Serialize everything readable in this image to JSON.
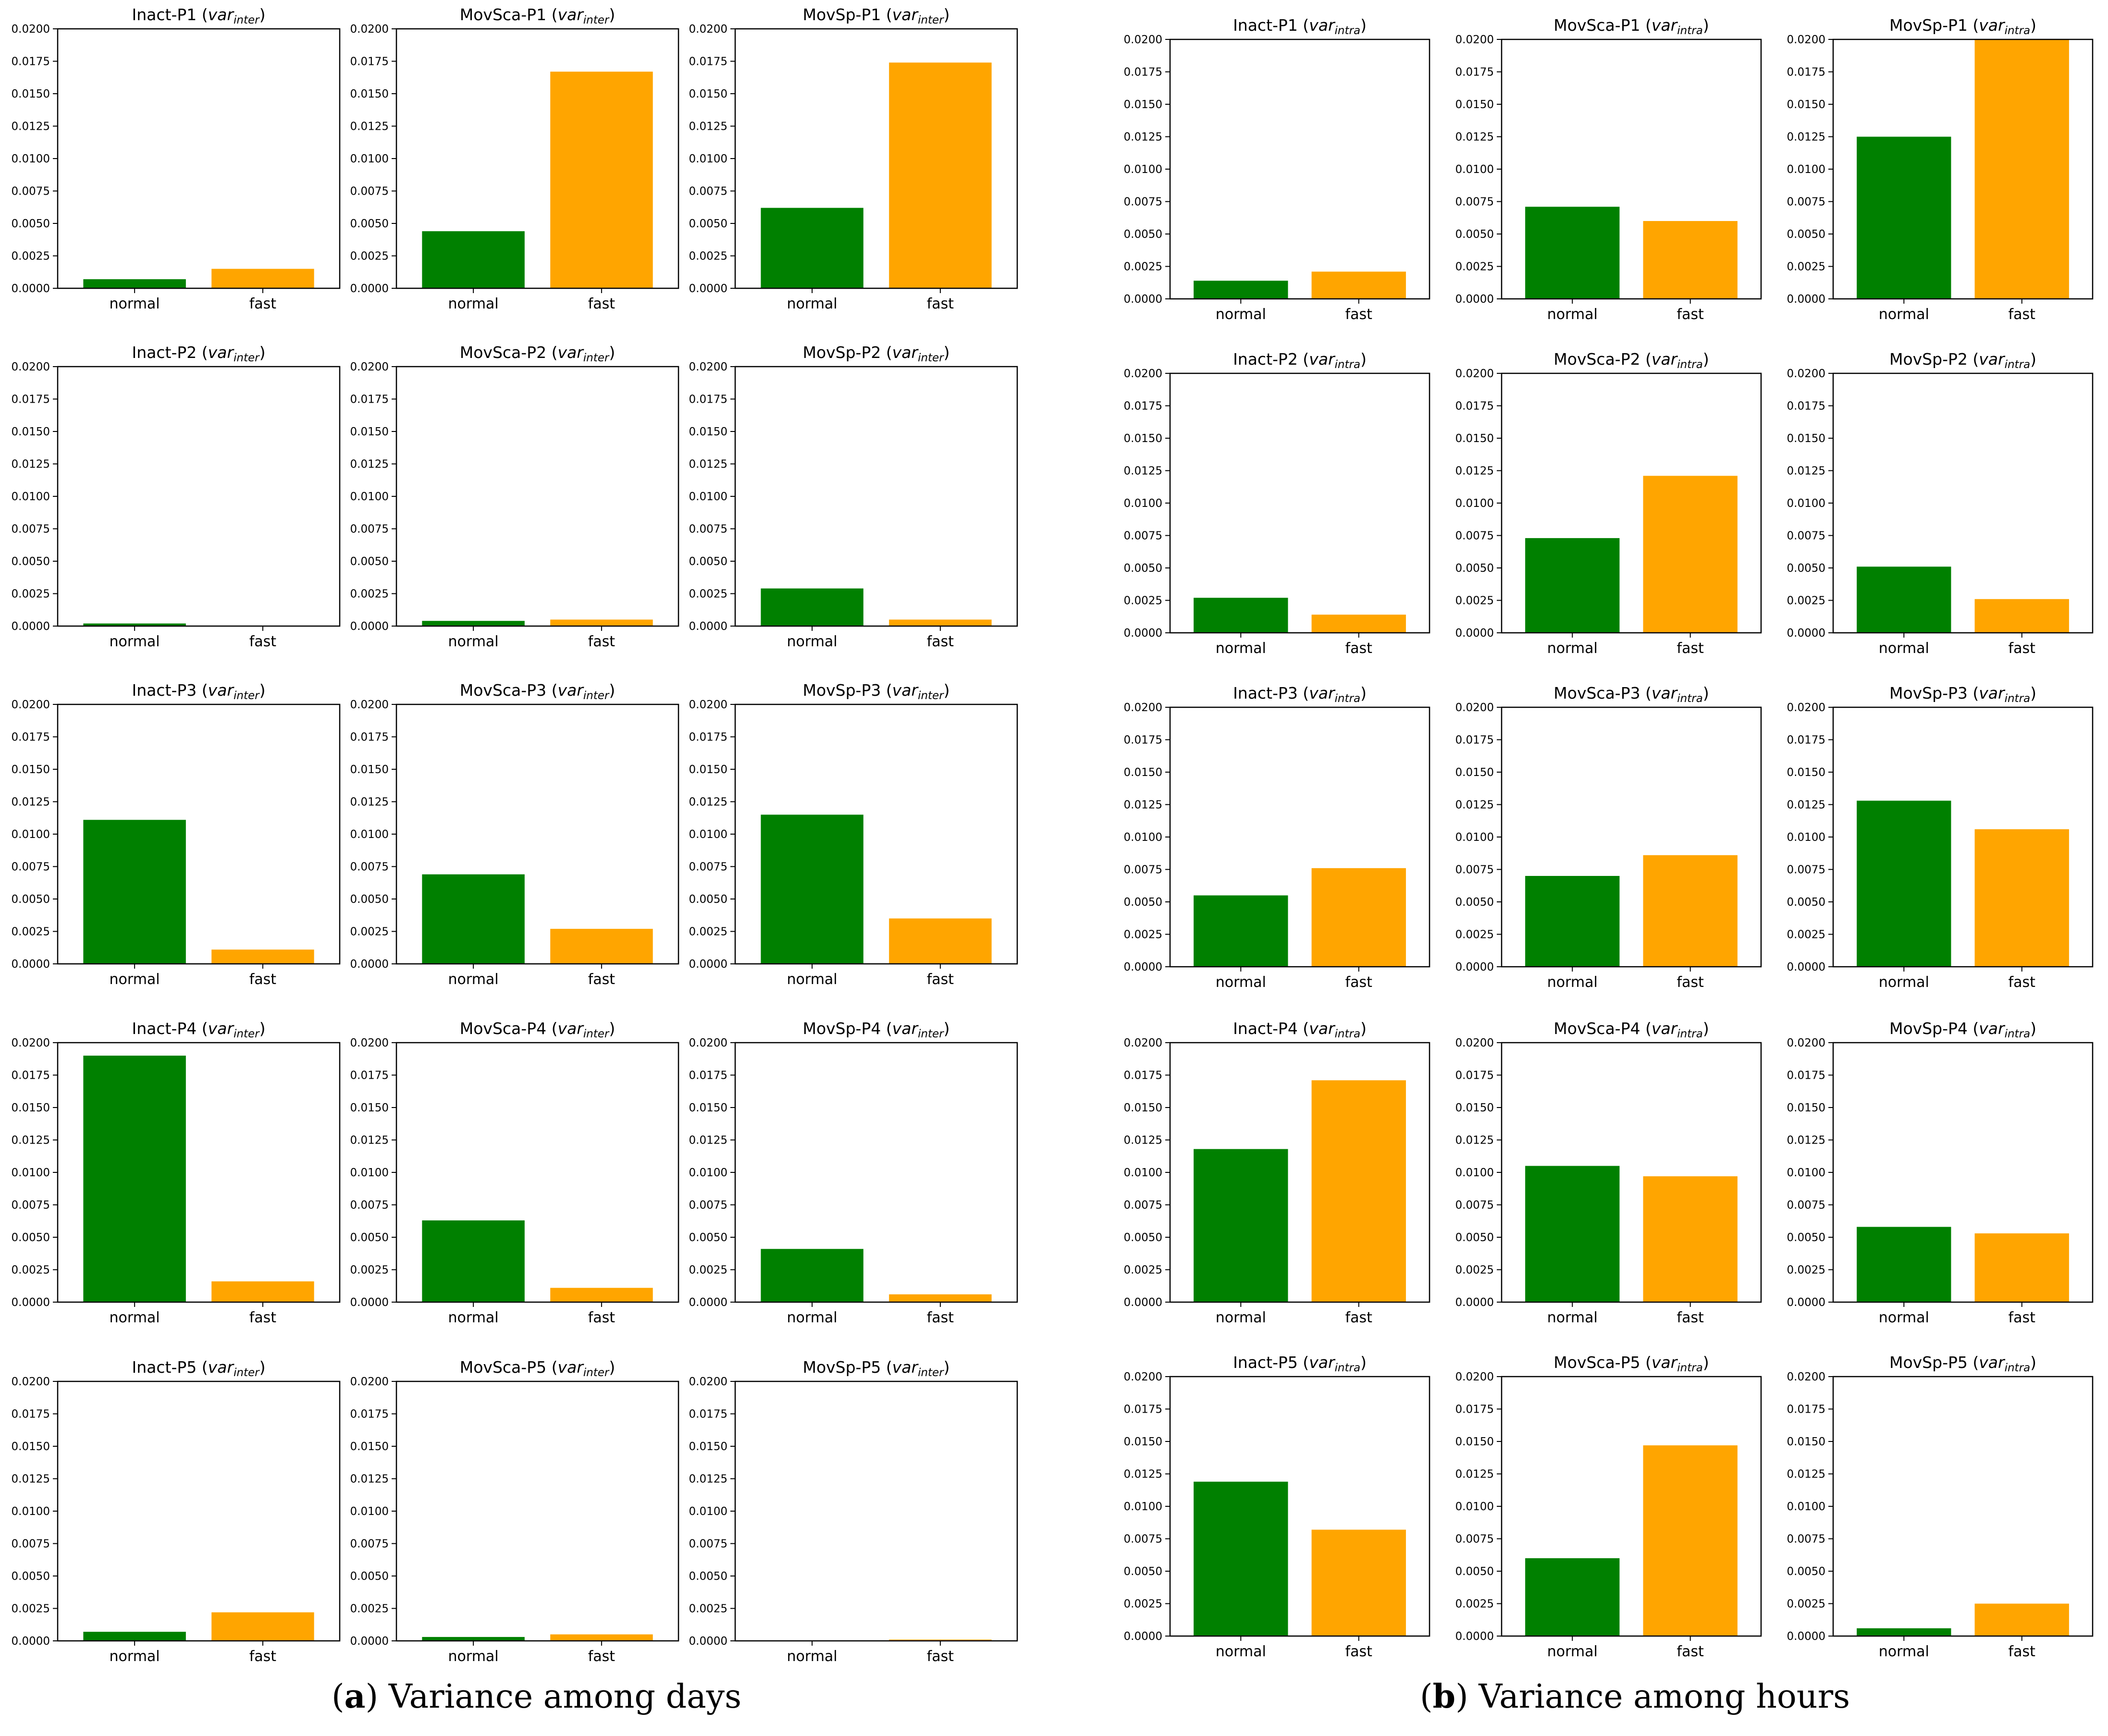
{
  "colors": {
    "normal": "#008000",
    "fast": "#ffa500",
    "axis": "#000000",
    "background": "#ffffff"
  },
  "captions": {
    "a": {
      "paren_open": "(",
      "label": "a",
      "paren_close": ")",
      "text": " Variance among days"
    },
    "b": {
      "paren_open": "(",
      "label": "b",
      "paren_close": ")",
      "text": " Variance among hours"
    }
  },
  "chart_data": {
    "type": "bar",
    "title_format": "{metric}-{participant} (var_{subscript})",
    "categories": [
      "normal",
      "fast"
    ],
    "ylim": [
      0,
      0.02
    ],
    "yticks": [
      "0.0000",
      "0.0025",
      "0.0050",
      "0.0075",
      "0.0100",
      "0.0125",
      "0.0150",
      "0.0175",
      "0.0200"
    ],
    "panels": [
      {
        "id": "a",
        "variance": "inter",
        "charts": [
          {
            "title": "Inact-P1",
            "sub": "inter",
            "values": [
              0.0007,
              0.0015
            ]
          },
          {
            "title": "MovSca-P1",
            "sub": "inter",
            "values": [
              0.0044,
              0.0167
            ]
          },
          {
            "title": "MovSp-P1",
            "sub": "inter",
            "values": [
              0.0062,
              0.0174
            ]
          },
          {
            "title": "Inact-P2",
            "sub": "inter",
            "values": [
              0.0002,
              0.0
            ]
          },
          {
            "title": "MovSca-P2",
            "sub": "inter",
            "values": [
              0.0004,
              0.0005
            ]
          },
          {
            "title": "MovSp-P2",
            "sub": "inter",
            "values": [
              0.0029,
              0.0005
            ]
          },
          {
            "title": "Inact-P3",
            "sub": "inter",
            "values": [
              0.0111,
              0.0011
            ]
          },
          {
            "title": "MovSca-P3",
            "sub": "inter",
            "values": [
              0.0069,
              0.0027
            ]
          },
          {
            "title": "MovSp-P3",
            "sub": "inter",
            "values": [
              0.0115,
              0.0035
            ]
          },
          {
            "title": "Inact-P4",
            "sub": "inter",
            "values": [
              0.019,
              0.0016
            ]
          },
          {
            "title": "MovSca-P4",
            "sub": "inter",
            "values": [
              0.0063,
              0.0011
            ]
          },
          {
            "title": "MovSp-P4",
            "sub": "inter",
            "values": [
              0.0041,
              0.0006
            ]
          },
          {
            "title": "Inact-P5",
            "sub": "inter",
            "values": [
              0.0007,
              0.0022
            ]
          },
          {
            "title": "MovSca-P5",
            "sub": "inter",
            "values": [
              0.0003,
              0.0005
            ]
          },
          {
            "title": "MovSp-P5",
            "sub": "inter",
            "values": [
              0.0,
              0.0001
            ]
          }
        ]
      },
      {
        "id": "b",
        "variance": "intra",
        "charts": [
          {
            "title": "Inact-P1",
            "sub": "intra",
            "values": [
              0.0014,
              0.0021
            ]
          },
          {
            "title": "MovSca-P1",
            "sub": "intra",
            "values": [
              0.0071,
              0.006
            ]
          },
          {
            "title": "MovSp-P1",
            "sub": "intra",
            "values": [
              0.0125,
              0.02
            ]
          },
          {
            "title": "Inact-P2",
            "sub": "intra",
            "values": [
              0.0027,
              0.0014
            ]
          },
          {
            "title": "MovSca-P2",
            "sub": "intra",
            "values": [
              0.0073,
              0.0121
            ]
          },
          {
            "title": "MovSp-P2",
            "sub": "intra",
            "values": [
              0.0051,
              0.0026
            ]
          },
          {
            "title": "Inact-P3",
            "sub": "intra",
            "values": [
              0.0055,
              0.0076
            ]
          },
          {
            "title": "MovSca-P3",
            "sub": "intra",
            "values": [
              0.007,
              0.0086
            ]
          },
          {
            "title": "MovSp-P3",
            "sub": "intra",
            "values": [
              0.0128,
              0.0106
            ]
          },
          {
            "title": "Inact-P4",
            "sub": "intra",
            "values": [
              0.0118,
              0.0171
            ]
          },
          {
            "title": "MovSca-P4",
            "sub": "intra",
            "values": [
              0.0105,
              0.0097
            ]
          },
          {
            "title": "MovSp-P4",
            "sub": "intra",
            "values": [
              0.0058,
              0.0053
            ]
          },
          {
            "title": "Inact-P5",
            "sub": "intra",
            "values": [
              0.0119,
              0.0082
            ]
          },
          {
            "title": "MovSca-P5",
            "sub": "intra",
            "values": [
              0.006,
              0.0147
            ]
          },
          {
            "title": "MovSp-P5",
            "sub": "intra",
            "values": [
              0.0006,
              0.0025
            ]
          }
        ]
      }
    ]
  }
}
